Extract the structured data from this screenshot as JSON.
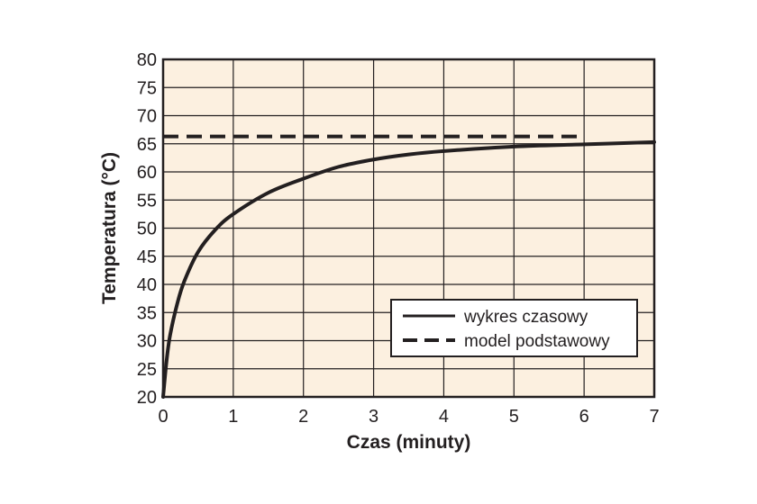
{
  "chart_data": {
    "type": "line",
    "title": "",
    "xlabel": "Czas (minuty)",
    "ylabel": "Temperatura (°C)",
    "xlim": [
      0,
      7
    ],
    "ylim": [
      20,
      80
    ],
    "x_ticks": [
      "0",
      "1",
      "2",
      "3",
      "4",
      "5",
      "6",
      "7"
    ],
    "y_ticks": [
      "20",
      "25",
      "30",
      "35",
      "40",
      "45",
      "50",
      "55",
      "60",
      "65",
      "70",
      "75",
      "80"
    ],
    "grid": true,
    "plot_background": "#fcf0e0",
    "legend_position": "bottom-right",
    "series": [
      {
        "name": "wykres czasowy",
        "style": "solid",
        "color": "#231f20",
        "x": [
          0,
          0.05,
          0.1,
          0.2,
          0.3,
          0.5,
          0.75,
          1,
          1.5,
          2,
          2.5,
          3,
          3.5,
          4,
          5,
          6,
          7
        ],
        "y": [
          20,
          26.5,
          31,
          36.5,
          40.5,
          45.8,
          49.8,
          52.5,
          56.3,
          58.8,
          60.9,
          62.2,
          63.1,
          63.7,
          64.5,
          64.9,
          65.3
        ]
      },
      {
        "name": "model podstawowy",
        "style": "dashed",
        "color": "#231f20",
        "x": [
          0,
          6
        ],
        "y": [
          66.3,
          66.3
        ]
      }
    ]
  }
}
